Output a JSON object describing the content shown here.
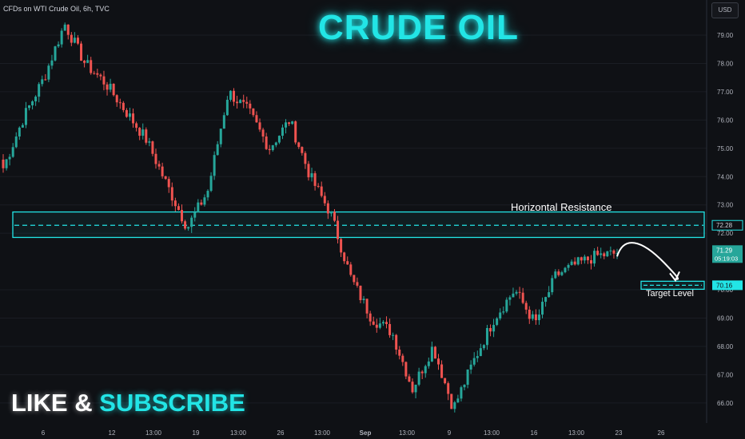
{
  "header": {
    "symbol_label": "CFDs on WTI Crude Oil, 6h, TVC",
    "currency_button": "USD"
  },
  "overlay": {
    "headline": "CRUDE OIL",
    "cta_word_1": "LIKE",
    "cta_amp": "&",
    "cta_word_2": "SUBSCRIBE",
    "colors": {
      "accent": "#22e5e6",
      "up": "#26a69a",
      "down": "#ef5350"
    }
  },
  "chart_data": {
    "type": "candlestick",
    "title": "CFDs on WTI Crude Oil, 6h, TVC",
    "y_axis": {
      "side": "right",
      "ylim": [
        65.5,
        79.5
      ],
      "ticks": [
        79.0,
        78.0,
        77.0,
        76.0,
        75.0,
        74.0,
        73.0,
        72.0,
        70.0,
        69.0,
        68.0,
        67.0,
        66.0
      ]
    },
    "x_axis_labels": [
      "6",
      "12",
      "13:00",
      "19",
      "13:00",
      "26",
      "13:00",
      "Sep",
      "13:00",
      "9",
      "13:00",
      "16",
      "13:00",
      "23",
      "26"
    ],
    "close_path": [
      74.3,
      76.1,
      77.5,
      79.4,
      78.0,
      77.3,
      76.3,
      75.3,
      73.7,
      72.2,
      73.5,
      77.0,
      76.3,
      75.0,
      76.0,
      74.0,
      72.7,
      70.4,
      69.0,
      68.5,
      66.5,
      68.0,
      65.8,
      67.5,
      69.0,
      70.0,
      68.8,
      70.5,
      70.9,
      71.2,
      71.29
    ],
    "horizontal_resistance": {
      "label": "Horizontal Resistance",
      "level": 72.28,
      "zone": [
        71.85,
        72.75
      ]
    },
    "target": {
      "label": "Target Level",
      "level": 70.16
    },
    "price_labels": {
      "resistance": "72.28",
      "current_price": "71.29",
      "countdown": "05:19:03",
      "target": "70.16"
    },
    "projection": "arrow from 71.29 toward Target Level"
  }
}
